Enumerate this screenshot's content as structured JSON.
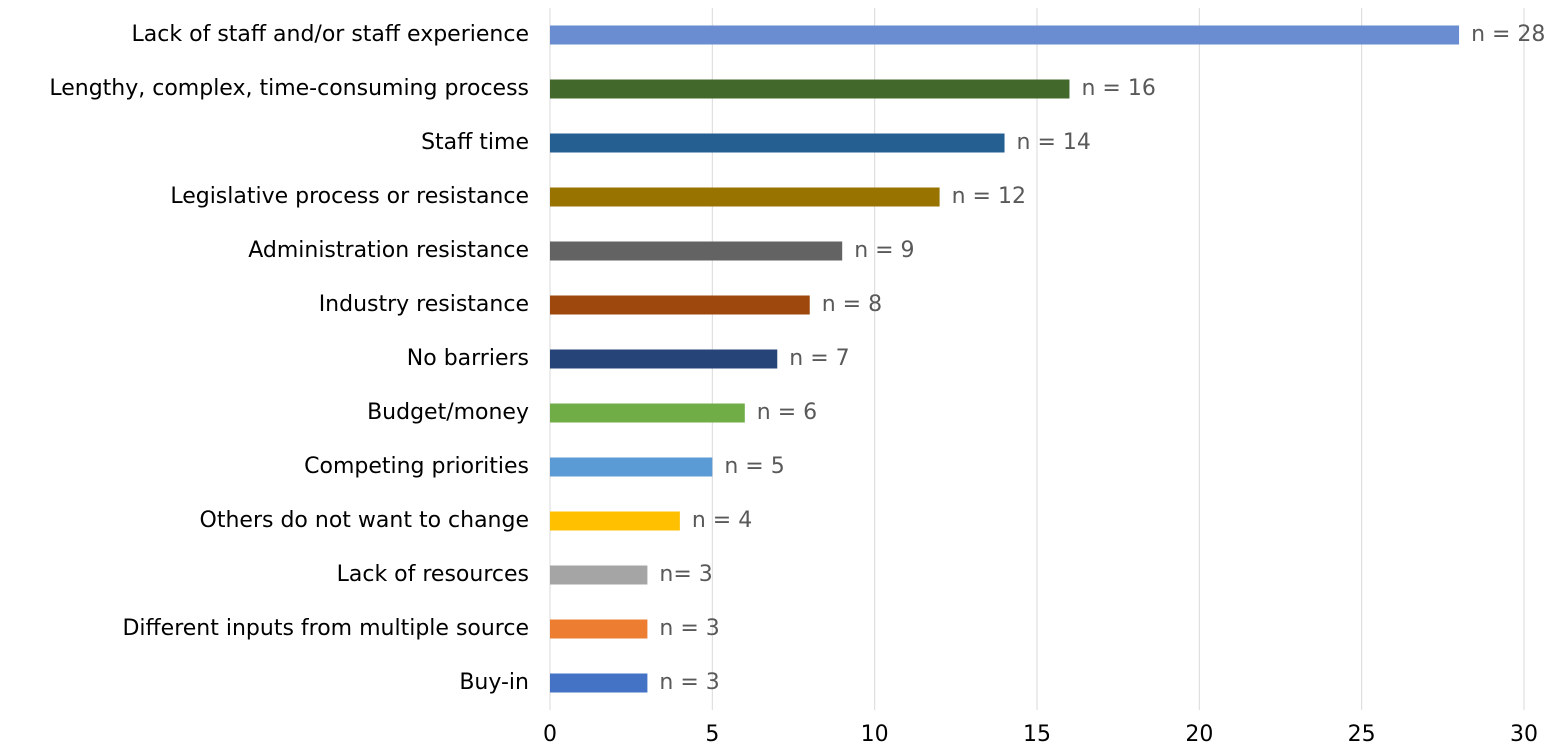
{
  "chart_data": {
    "type": "hbar",
    "categories": [
      "Lack of staff and/or staff experience",
      "Lengthy, complex, time-consuming process",
      "Staff time",
      "Legislative process or resistance",
      "Administration resistance",
      "Industry resistance",
      "No barriers",
      "Budget/money",
      "Competing priorities",
      "Others do not want to change",
      "Lack of resources",
      "Different inputs from multiple source",
      "Buy-in"
    ],
    "values": [
      28,
      16,
      14,
      12,
      9,
      8,
      7,
      6,
      5,
      4,
      3,
      3,
      3
    ],
    "value_labels": [
      "n = 28",
      "n = 16",
      "n = 14",
      "n = 12",
      "n = 9",
      "n = 8",
      "n = 7",
      "n = 6",
      "n = 5",
      "n = 4",
      "n= 3",
      "n = 3",
      "n = 3"
    ],
    "colors": [
      "#6a8dd1",
      "#43682b",
      "#255e91",
      "#997300",
      "#636363",
      "#9e480e",
      "#264478",
      "#70ad47",
      "#5b9bd5",
      "#ffc000",
      "#a5a5a5",
      "#ed7d31",
      "#4472c4"
    ],
    "xlim": [
      0,
      30
    ],
    "xticks": [
      0,
      5,
      10,
      15,
      20,
      25,
      30
    ],
    "grid": true
  }
}
